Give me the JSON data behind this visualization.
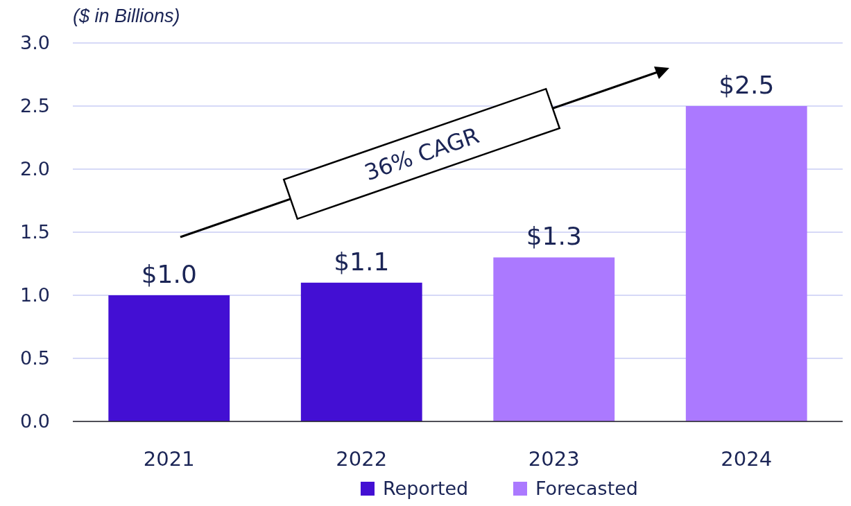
{
  "chart_data": {
    "type": "bar",
    "ylabel": "($ in Billions)",
    "categories": [
      "2021",
      "2022",
      "2023",
      "2024"
    ],
    "series": [
      {
        "name": "Reported",
        "color": "#430fd3",
        "values": [
          1.0,
          1.1,
          null,
          null
        ],
        "value_labels": [
          "$1.0",
          "$1.1",
          null,
          null
        ]
      },
      {
        "name": "Forecasted",
        "color": "#ab79ff",
        "values": [
          null,
          null,
          1.3,
          2.5
        ],
        "value_labels": [
          null,
          null,
          "$1.3",
          "$2.5"
        ]
      }
    ],
    "ylim": [
      0,
      3
    ],
    "yticks": [
      {
        "value": 0,
        "label": "0.0"
      },
      {
        "value": 0.5,
        "label": "0.5"
      },
      {
        "value": 1,
        "label": "1.0"
      },
      {
        "value": 1.5,
        "label": "1.5"
      },
      {
        "value": 2,
        "label": "2.0"
      },
      {
        "value": 2.5,
        "label": "2.5"
      },
      {
        "value": 3,
        "label": "3.0"
      }
    ],
    "grid": "y",
    "legend": "bottom",
    "annotations": [
      "36% CAGR"
    ]
  }
}
